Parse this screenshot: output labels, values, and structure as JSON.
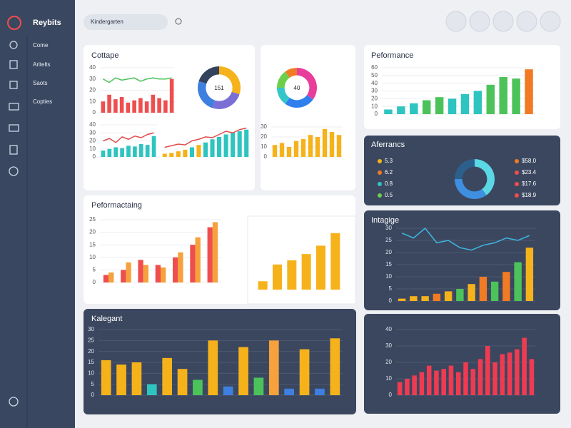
{
  "sidebar": {
    "brand": "Reybits",
    "items": [
      "Come",
      "Aritelts",
      "Saots",
      "Copties"
    ]
  },
  "header": {
    "title": "Kindergarten"
  },
  "charts": [
    {
      "type": "bar-line",
      "title": "Cottape",
      "values": [
        10,
        16,
        12,
        14,
        9,
        11,
        13,
        10,
        16,
        13,
        11,
        30
      ],
      "color": "#ef4e4e",
      "line": [
        30,
        27,
        31,
        29,
        30,
        31,
        28,
        30,
        31,
        30,
        30,
        31
      ],
      "line_color": "#4cc35a",
      "ylim": [
        0,
        40
      ],
      "yticks": [
        0,
        10,
        20,
        30,
        40
      ]
    },
    {
      "type": "donut",
      "center": "151",
      "values": [
        30,
        25,
        25,
        20
      ],
      "colors": [
        "#f6b21b",
        "#7b6fd6",
        "#3f7fe0",
        "#33435e"
      ]
    },
    {
      "type": "bar-line",
      "values": [
        8,
        10,
        12,
        11,
        14,
        13,
        16,
        15,
        26
      ],
      "color": "#2ec4c0",
      "line": [
        20,
        23,
        18,
        25,
        22,
        26,
        24,
        28,
        30
      ],
      "line_color": "#e04b4b",
      "ylim": [
        0,
        40
      ],
      "yticks": [
        0,
        10,
        20,
        30,
        40
      ]
    },
    {
      "type": "bar-line",
      "values": [
        4,
        5,
        7,
        9,
        12,
        15,
        18,
        22,
        25,
        28,
        30,
        32,
        34
      ],
      "colors": [
        "#f6b21b",
        "#f6b21b",
        "#f6b21b",
        "#f6b21b",
        "#2ec4c0",
        "#f6b21b",
        "#2ec4c0",
        "#2ec4c0",
        "#2ec4c0",
        "#2ec4c0",
        "#2ec4c0",
        "#2ec4c0",
        "#2ec4c0"
      ],
      "line": [
        12,
        14,
        16,
        15,
        20,
        22,
        25,
        24,
        28,
        32,
        30,
        34,
        36
      ],
      "line_color": "#e04b4b",
      "ylim": [
        0,
        40
      ]
    },
    {
      "type": "donut",
      "center": "40",
      "values": [
        35,
        25,
        15,
        15,
        10
      ],
      "colors": [
        "#e93d9b",
        "#2f80ed",
        "#35c6c9",
        "#6ccf4c",
        "#f07b24"
      ]
    },
    {
      "type": "bar",
      "values": [
        12,
        14,
        10,
        16,
        18,
        22,
        20,
        28,
        25,
        22
      ],
      "color": "#f6b21b",
      "ylim": [
        0,
        30
      ],
      "yticks": [
        0,
        10,
        20,
        30
      ]
    },
    {
      "type": "bar",
      "title": "Peformance",
      "values": [
        6,
        10,
        14,
        18,
        22,
        20,
        26,
        30,
        38,
        48,
        46,
        58
      ],
      "colors": [
        "#2ec4c0",
        "#2ec4c0",
        "#2ec4c0",
        "#4cc35a",
        "#4cc35a",
        "#2ec4c0",
        "#2ec4c0",
        "#2ec4c0",
        "#4cc35a",
        "#4cc35a",
        "#4cc35a",
        "#f07b24"
      ],
      "ylim": [
        0,
        60
      ],
      "yticks": [
        0,
        10,
        20,
        30,
        40,
        50,
        60
      ]
    },
    {
      "type": "donut",
      "title": "Aferrancs",
      "values": [
        40,
        35,
        25
      ],
      "colors": [
        "#5ad8e6",
        "#3f8fe0",
        "#2b5f8c"
      ],
      "legend_left": [
        "5.3",
        "6.2",
        "0.8",
        "0.5"
      ],
      "legend_right": [
        "$58.0",
        "$23.4",
        "$17.6",
        "$18.9"
      ],
      "legend_colors": [
        "#f6b21b",
        "#f07b24",
        "#2ec4c0",
        "#6ccf4c"
      ],
      "legend_right_colors": [
        "#f07b24",
        "#ef4e4e",
        "#ef4e4e",
        "#ef4e4e"
      ]
    },
    {
      "type": "grouped",
      "title": "Peformactaing",
      "series": [
        {
          "color": "#ef4e4e",
          "values": [
            3,
            5,
            9,
            7,
            10,
            15,
            22
          ]
        },
        {
          "color": "#f6a13b",
          "values": [
            4,
            8,
            7,
            6,
            12,
            18,
            24
          ]
        }
      ],
      "ylim": [
        0,
        25
      ],
      "yticks": [
        0,
        5,
        10,
        15,
        20,
        25
      ]
    },
    {
      "type": "bar",
      "values": [
        4,
        12,
        14,
        17,
        21,
        27
      ],
      "color": "#f6b21b",
      "ylim": [
        0,
        30
      ]
    },
    {
      "type": "bar-line",
      "title": "Intagige",
      "values": [
        1,
        2,
        2,
        3,
        4,
        5,
        7,
        10,
        8,
        12,
        16,
        22
      ],
      "colors": [
        "#f6b21b",
        "#f6b21b",
        "#f6b21b",
        "#f07b24",
        "#f6b21b",
        "#4cc35a",
        "#f6b21b",
        "#f07b24",
        "#4cc35a",
        "#f07b24",
        "#4cc35a",
        "#f6b21b"
      ],
      "line": [
        28,
        26,
        30,
        24,
        25,
        22,
        21,
        23,
        24,
        26,
        25,
        27
      ],
      "line_color": "#3fb6e0",
      "ylim": [
        0,
        30
      ],
      "yticks": [
        0,
        5,
        10,
        15,
        20,
        25,
        30
      ]
    },
    {
      "type": "bar",
      "title": "Kalegant",
      "values": [
        16,
        14,
        15,
        5,
        17,
        12,
        7,
        25,
        4,
        22,
        8,
        25,
        3,
        21,
        3,
        26
      ],
      "colors": [
        "#f6b21b",
        "#f6b21b",
        "#f6b21b",
        "#2ec4c0",
        "#f6b21b",
        "#f6b21b",
        "#4cc35a",
        "#f6b21b",
        "#3f7fe0",
        "#f6b21b",
        "#4cc35a",
        "#f6a13b",
        "#3f7fe0",
        "#f6b21b",
        "#3f7fe0",
        "#f6b21b"
      ],
      "ylim": [
        0,
        30
      ],
      "yticks": [
        0,
        5,
        10,
        15,
        20,
        25,
        30
      ]
    },
    {
      "type": "bar",
      "values": [
        8,
        10,
        12,
        14,
        18,
        15,
        16,
        18,
        14,
        20,
        16,
        22,
        30,
        20,
        25,
        26,
        28,
        35,
        22
      ],
      "color": "#ef3b52",
      "ylim": [
        0,
        40
      ],
      "yticks": [
        0,
        10,
        20,
        30,
        40
      ]
    }
  ]
}
